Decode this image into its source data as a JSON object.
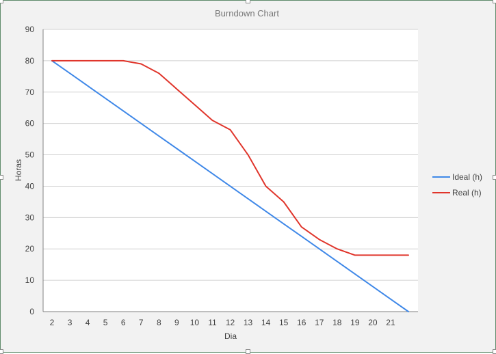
{
  "chart_data": {
    "type": "line",
    "title": "Burndown Chart",
    "xlabel": "Dia",
    "ylabel": "Horas",
    "ylim": [
      0,
      90
    ],
    "yticks": [
      0,
      10,
      20,
      30,
      40,
      50,
      60,
      70,
      80,
      90
    ],
    "xticks": [
      "2",
      "3",
      "4",
      "5",
      "6",
      "7",
      "8",
      "9",
      "10",
      "11",
      "12",
      "13",
      "14",
      "15",
      "16",
      "17",
      "18",
      "19",
      "20",
      "21"
    ],
    "x": [
      2,
      3,
      4,
      5,
      6,
      7,
      8,
      9,
      10,
      11,
      12,
      13,
      14,
      15,
      16,
      17,
      18,
      19,
      20,
      21,
      22
    ],
    "grid": true,
    "legend_position": "right",
    "series": [
      {
        "name": "Ideal (h)",
        "color": "#3f88e8",
        "values": [
          80,
          76,
          72,
          68,
          64,
          60,
          56,
          52,
          48,
          44,
          40,
          36,
          32,
          28,
          24,
          20,
          16,
          12,
          8,
          4,
          0
        ]
      },
      {
        "name": "Real (h)",
        "color": "#e0352b",
        "values": [
          80,
          80,
          80,
          80,
          80,
          79,
          76,
          71,
          66,
          61,
          58,
          50,
          40,
          35,
          27,
          23,
          20,
          18,
          18,
          18,
          18
        ]
      }
    ]
  }
}
